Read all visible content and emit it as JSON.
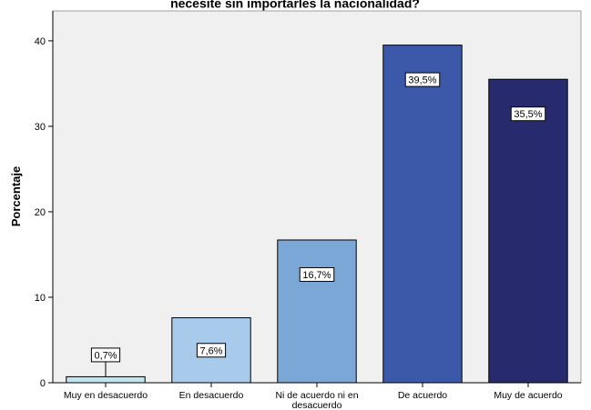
{
  "chart_data": {
    "type": "bar",
    "title": "necesite sin importarles la nacionalidad?",
    "xlabel": "",
    "ylabel": "Porcentaje",
    "ylim": [
      0,
      43.5
    ],
    "yticks": [
      "0",
      "10",
      "20",
      "30",
      "40"
    ],
    "grid": false,
    "categories": [
      "Muy en desacuerdo",
      "En desacuerdo",
      "Ni de acuerdo ni en desacuerdo",
      "De acuerdo",
      "Muy de acuerdo"
    ],
    "category_lines": [
      [
        "Muy en desacuerdo"
      ],
      [
        "En desacuerdo"
      ],
      [
        "Ni de acuerdo ni en",
        "desacuerdo"
      ],
      [
        "De acuerdo"
      ],
      [
        "Muy de acuerdo"
      ]
    ],
    "values": [
      0.7,
      7.6,
      16.7,
      39.5,
      35.5
    ],
    "data_labels": [
      "0,7%",
      "7,6%",
      "16,7%",
      "39,5%",
      "35,5%"
    ],
    "colors": [
      "#bfe6ee",
      "#a8cbeb",
      "#7ba7d6",
      "#3c58a8",
      "#272b6e"
    ],
    "background": "#f0f0f0"
  }
}
